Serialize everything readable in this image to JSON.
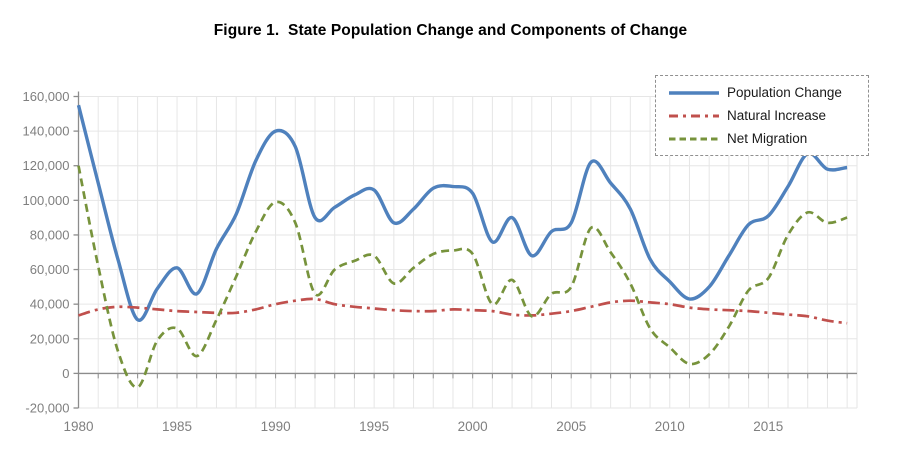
{
  "chart_data": {
    "type": "line",
    "title": "Figure 1.  State Population Change and Components of Change",
    "xlabel": "",
    "ylabel": "",
    "x": [
      1980,
      1981,
      1982,
      1983,
      1984,
      1985,
      1986,
      1987,
      1988,
      1989,
      1990,
      1991,
      1992,
      1993,
      1994,
      1995,
      1996,
      1997,
      1998,
      1999,
      2000,
      2001,
      2002,
      2003,
      2004,
      2005,
      2006,
      2007,
      2008,
      2009,
      2010,
      2011,
      2012,
      2013,
      2014,
      2015,
      2016,
      2017,
      2018,
      2019
    ],
    "series": [
      {
        "name": "Population Change",
        "color": "#4F81BD",
        "style": "solid",
        "values": [
          155000,
          110000,
          66000,
          31000,
          49000,
          61000,
          46000,
          72000,
          92000,
          123000,
          140000,
          131000,
          90000,
          96000,
          103000,
          106000,
          87000,
          95000,
          107000,
          108000,
          104000,
          76000,
          90000,
          68000,
          82000,
          87000,
          122000,
          110000,
          95000,
          66000,
          53000,
          43000,
          50000,
          68000,
          86000,
          91000,
          108000,
          127000,
          118000,
          119000
        ]
      },
      {
        "name": "Natural Increase",
        "color": "#C0504D",
        "style": "dash-dot",
        "values": [
          33500,
          37000,
          38500,
          38000,
          37000,
          36000,
          35500,
          35000,
          35000,
          37000,
          40000,
          42000,
          43000,
          40000,
          38500,
          37500,
          36500,
          36000,
          36000,
          37000,
          36500,
          36000,
          34000,
          33500,
          34500,
          36000,
          38500,
          41000,
          42000,
          41000,
          40000,
          38000,
          37000,
          36500,
          36000,
          35000,
          34000,
          33000,
          30500,
          29000
        ]
      },
      {
        "name": "Net Migration",
        "color": "#77933C",
        "style": "dashed",
        "values": [
          120000,
          62000,
          13000,
          -8000,
          19000,
          26000,
          10000,
          31000,
          56000,
          82000,
          99000,
          87000,
          46000,
          60000,
          65000,
          68000,
          52000,
          61000,
          69000,
          71000,
          69000,
          40000,
          54000,
          33000,
          46000,
          50000,
          84000,
          70000,
          52000,
          26000,
          15000,
          5500,
          11000,
          27000,
          48000,
          55000,
          80000,
          93000,
          87000,
          90000
        ]
      }
    ],
    "xlim": [
      1980,
      2019.5
    ],
    "ylim": [
      -20000,
      160000
    ],
    "x_ticks": [
      1980,
      1985,
      1990,
      1995,
      2000,
      2005,
      2010,
      2015
    ],
    "x_tick_labels": [
      "1980",
      "1985",
      "1990",
      "1995",
      "2000",
      "2005",
      "2010",
      "2015"
    ],
    "y_ticks": [
      -20000,
      0,
      20000,
      40000,
      60000,
      80000,
      100000,
      120000,
      140000,
      160000
    ],
    "y_tick_labels": [
      "-20,000",
      "0",
      "20,000",
      "40,000",
      "60,000",
      "80,000",
      "100,000",
      "120,000",
      "140,000",
      "160,000"
    ],
    "grid": true,
    "legend_position": "top-right",
    "grid_color": "#E6E6E6",
    "axis_color": "#8C8C8C",
    "tick_label_color": "#7F7F7F"
  }
}
